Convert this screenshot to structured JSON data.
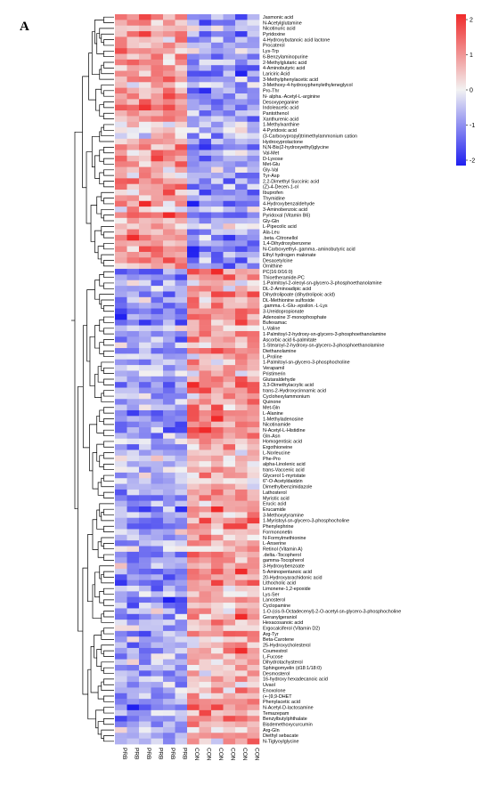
{
  "chart_data": {
    "type": "heatmap",
    "panel_label": "A",
    "columns": [
      "PRB",
      "PRB",
      "PRB",
      "PRB",
      "PRB",
      "PRB",
      "CON",
      "CON",
      "CON",
      "CON",
      "CON",
      "CON"
    ],
    "rows": [
      "Jasmonic acid",
      "N-Acetylglutamine",
      "Nicotinuric acid",
      "Pyridoxine",
      "4-Hydroxybutanoic acid lactone",
      "Procaterol",
      "Lys-Trp",
      "6-Benzylaminopurine",
      "2-Methylglutaric acid",
      "4-Aminobutyric acid",
      "Lariciric Acid",
      "3-Methylphenylacetic acid",
      "3-Methoxy-4-hydroxyphenylethyleneglycol",
      "Pro-Thr",
      "N- alpha.-Acetyl-L-arginine",
      "Desoxypeganine",
      "Indoleacetic acid",
      "Pantothenol",
      "Xanthurenic acid",
      "1-Methylxanthine",
      "4-Pyridoxic acid",
      "(3-Carboxypropyl)trimethylammonium cation",
      "Hydroxyprolactone",
      "N,N-Bis(2-hydroxyethyl)glycine",
      "Val-Met",
      "D-Lyxose",
      "Met-Glu",
      "Gly-Val",
      "Tyr-Asp",
      "2,2-Dimethyl Succinic acid",
      "(Z)-4-Decen-1-ol",
      "Ibuprofen",
      "Thymidine",
      "4-Hydroxybenzaldehyde",
      "3-Aminobenzoic acid",
      "Pyridoxal (Vitamin B6)",
      "Gly-Gln",
      "L-Pipecolic acid",
      "Ala-Leu",
      ".beta.-Citronellol",
      "1,4-Dihydroxybenzene",
      "N-Carboxyethyl-.gamma.-aminobutyric acid",
      "Ethyl hydrogen malonate",
      "Desacetylcine",
      "Ornithine",
      "PC(16:0/16:0)",
      "Thioetheramide-PC",
      "1-Palmitoyl-2-oleoyl-sn-glycero-3-phosphoethanolamine",
      "DL-2-Aminoadipic acid",
      "Dihydrolipoate (dihydrolipoic acid)",
      "DL-Methionine sulfoxide",
      ".gamma.-L-Glu-.epsilon.-L-Lys",
      "3-Ureidopropionate",
      "Adenosine 3'-monophosphate",
      "Bufexamac",
      "L-Valine",
      "1-Palmitoyl-2-hydroxy-sn-glycero-3-phosphoethanolamine",
      "Ascorbic acid 6-palmitate",
      "1-Stearoyl-2-hydroxy-sn-glycero-3-phosphoethanolamine",
      "Diethanolamine",
      "L-Proline",
      "1-Palmitoyl-sn-glycero-3-phosphocholine",
      "Verapamil",
      "Pristimerin",
      "Glutaraldehyde",
      "3,3-Dimethylacrylic acid",
      "trans-2-Hydroxycinnamic acid",
      "Cyclohexylammonium",
      "Quinone",
      "Met-Gln",
      "L-Alanine",
      "1-Methyladenosine",
      "Nicotinamide",
      "N-Acetyl-L-Histidine",
      "Gln-Asn",
      "Homogentisic acid",
      "Ergothioneine",
      "L-Norleucine",
      "Phe-Pro",
      "alpha-Linolenic acid",
      "trans-Vaccenic acid",
      "Glycerol 1-myristate",
      "6''-O-Acetyldaidzin",
      "Dimethylbenzimidazole",
      "Lathosterol",
      "Myristic acid",
      "Erucic acid",
      "Erucamide",
      "3-Methoxytyramine",
      "1-Myristoyl-sn-glycero-3-phosphocholine",
      "Phenylephrine",
      "Formononetin",
      "N-Formylmethionine",
      "L-Anserine",
      "Retinol (Vitamin A)",
      ".delta.-Tocopherol",
      "gamma-Tocopherol",
      "3-Hydroxybenzoate",
      "5-Aminopentanoic acid",
      "20-Hydroxyarachidonic acid",
      "Lithocholic acid",
      "Limonene-1,2-epoxide",
      "Lys-Ser",
      "Lanosterol",
      "Cyclopamine",
      "1-O-(cis-9-Octadecenyl)-2-O-acetyl-sn-glycero-3-phosphocholine",
      "Geranylgeraniol",
      "Hexacosanoic acid",
      "Ergocalciferol (Vitamin D2)",
      "Arg-Tyr",
      "Beta-Carotene",
      "25-Hydroxycholesterol",
      "Coumestrol",
      "L-Fucose",
      "Dihydrotachysterol",
      "Sphingomyelin (d18:1/18:0)",
      "Desmosterol",
      "16-hydroxy hexadecanoic acid",
      "Uvaol",
      "Enoxolone",
      "(+-)9,9-DHET",
      "Phenylacetic acid",
      "N-Acetyl-D-lactosamine",
      "Temazepam",
      "Benzylbutylphthalate",
      "Bisdemethoxycurcumin",
      "Arg-Gln",
      "Diethyl sebacate",
      "N-Tiglyoylglycine"
    ],
    "color_scale": {
      "min": -2,
      "max": 2,
      "ticks": [
        2,
        1,
        0,
        -1,
        -2
      ],
      "low_color": "#1f1ff0",
      "mid_color": "#f2f2f2",
      "high_color": "#f02a2a"
    },
    "cluster_split_after_row": "Ornithine",
    "upper_cluster_pattern": "PRB high, CON low",
    "lower_cluster_pattern": "PRB low, CON high",
    "dendrogram": "rows, hierarchical clustering"
  }
}
